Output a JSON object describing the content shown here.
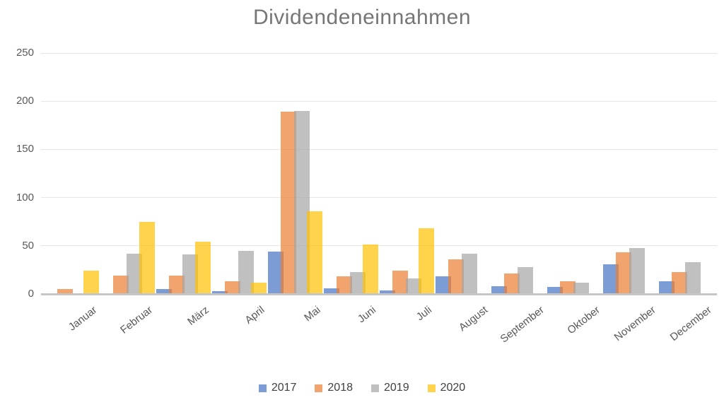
{
  "chart_data": {
    "type": "bar",
    "title": "Dividendeneinnahmen",
    "xlabel": "",
    "ylabel": "",
    "ylim": [
      0,
      250
    ],
    "yticks": [
      0,
      50,
      100,
      150,
      200,
      250
    ],
    "grid": true,
    "legend_position": "bottom",
    "categories": [
      "Januar",
      "Februar",
      "März",
      "April",
      "Mai",
      "Juni",
      "Juli",
      "August",
      "September",
      "Oktober",
      "November",
      "December"
    ],
    "series": [
      {
        "name": "2017",
        "color": "rgba(68,114,196,0.7)",
        "base_hex": "#4472C4",
        "values": [
          0,
          0,
          5,
          3,
          44,
          6,
          4,
          18,
          8,
          7,
          31,
          13
        ]
      },
      {
        "name": "2018",
        "color": "rgba(237,125,49,0.7)",
        "base_hex": "#ED7D31",
        "values": [
          5,
          19,
          19,
          13,
          189,
          18,
          24,
          36,
          21,
          13,
          43,
          23
        ]
      },
      {
        "name": "2019",
        "color": "rgba(165,165,165,0.7)",
        "base_hex": "#A5A5A5",
        "values": [
          0,
          42,
          41,
          45,
          190,
          23,
          16,
          42,
          28,
          12,
          48,
          33
        ]
      },
      {
        "name": "2020",
        "color": "rgba(255,192,0,0.7)",
        "base_hex": "#FFC000",
        "values": [
          24,
          75,
          54,
          12,
          86,
          51,
          68,
          0,
          0,
          0,
          0,
          0
        ]
      }
    ],
    "style": {
      "title_color": "#767676",
      "tick_color": "#595959",
      "legend_text_color": "#404040",
      "gridline_color": "#e6e6e6",
      "axis_line_color": "#c6c6c6"
    }
  }
}
